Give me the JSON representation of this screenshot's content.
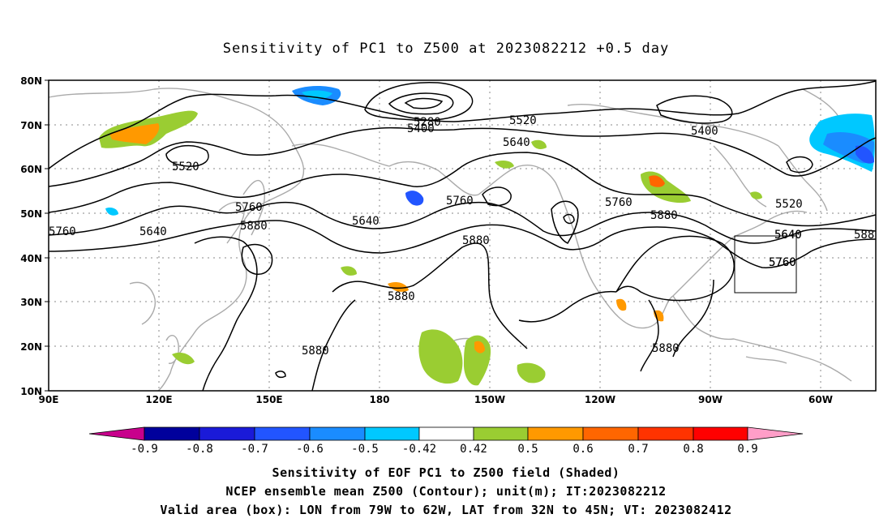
{
  "title": "Sensitivity of PC1 to Z500 at 2023082212 +0.5 day",
  "map": {
    "lat_labels": [
      "80N",
      "70N",
      "60N",
      "50N",
      "40N",
      "30N",
      "20N",
      "10N"
    ],
    "lon_labels": [
      "90E",
      "120E",
      "150E",
      "180",
      "150W",
      "120W",
      "90W",
      "60W"
    ],
    "contour_labels": [
      "5280",
      "5400",
      "5520",
      "5640",
      "5400",
      "5520",
      "5640",
      "5760",
      "5760",
      "5640",
      "5880",
      "5760",
      "5640",
      "5760",
      "5880",
      "5880",
      "5760",
      "5880",
      "5520",
      "5640",
      "5760",
      "588",
      "5880",
      "5880"
    ],
    "box": {
      "label": "Valid area",
      "lon_from": "79W",
      "lon_to": "62W",
      "lat_from": "32N",
      "lat_to": "45N"
    }
  },
  "colorbar": {
    "labels": [
      "-0.9",
      "-0.8",
      "-0.7",
      "-0.6",
      "-0.5",
      "-0.42",
      "0.42",
      "0.5",
      "0.6",
      "0.7",
      "0.8",
      "0.9"
    ],
    "colors": [
      "#00009c",
      "#1a1ad8",
      "#2255ff",
      "#1a8cff",
      "#00c8ff",
      "#ffffff",
      "#9acd32",
      "#ff9900",
      "#ff6600",
      "#ff3300",
      "#ff0000"
    ],
    "low_end_color": "#c8008c",
    "high_end_color": "#ff9ec8"
  },
  "captions": [
    "Sensitivity of EOF PC1 to Z500 field (Shaded)",
    "NCEP ensemble mean Z500 (Contour); unit(m); IT:2023082212",
    "Valid area (box): LON from 79W to 62W, LAT from 32N to 45N; VT: 2023082412"
  ]
}
